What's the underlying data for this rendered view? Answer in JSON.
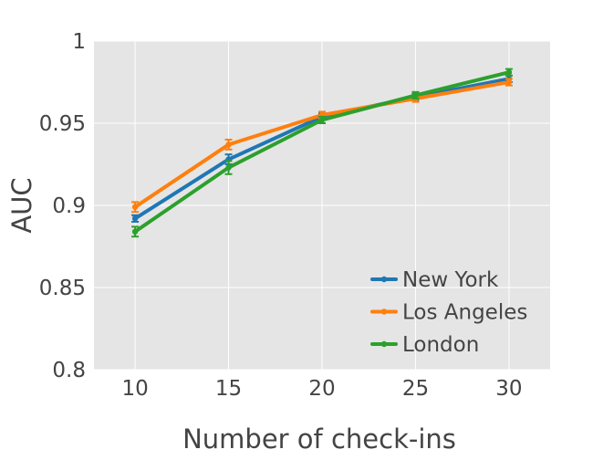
{
  "chart_data": {
    "type": "line",
    "title": "",
    "xlabel": "Number of check-ins",
    "ylabel": "AUC",
    "x": [
      10,
      15,
      20,
      25,
      30
    ],
    "x_ticks": [
      "10",
      "15",
      "20",
      "25",
      "30"
    ],
    "y_ticks": [
      "0.8",
      "0.85",
      "0.9",
      "0.95",
      "1"
    ],
    "xlim": [
      7.8,
      32.2
    ],
    "ylim": [
      0.8,
      1.0
    ],
    "grid": true,
    "legend_position": "bottom-right",
    "series": [
      {
        "name": "New York",
        "color": "#1f77b4",
        "values": [
          0.892,
          0.928,
          0.954,
          0.966,
          0.977
        ],
        "errors": [
          0.002,
          0.003,
          0.002,
          0.002,
          0.002
        ]
      },
      {
        "name": "Los Angeles",
        "color": "#ff7f0e",
        "values": [
          0.899,
          0.937,
          0.955,
          0.965,
          0.975
        ],
        "errors": [
          0.003,
          0.003,
          0.002,
          0.002,
          0.002
        ]
      },
      {
        "name": "London",
        "color": "#2ca02c",
        "values": [
          0.884,
          0.923,
          0.952,
          0.967,
          0.981
        ],
        "errors": [
          0.003,
          0.004,
          0.002,
          0.002,
          0.002
        ]
      }
    ]
  }
}
